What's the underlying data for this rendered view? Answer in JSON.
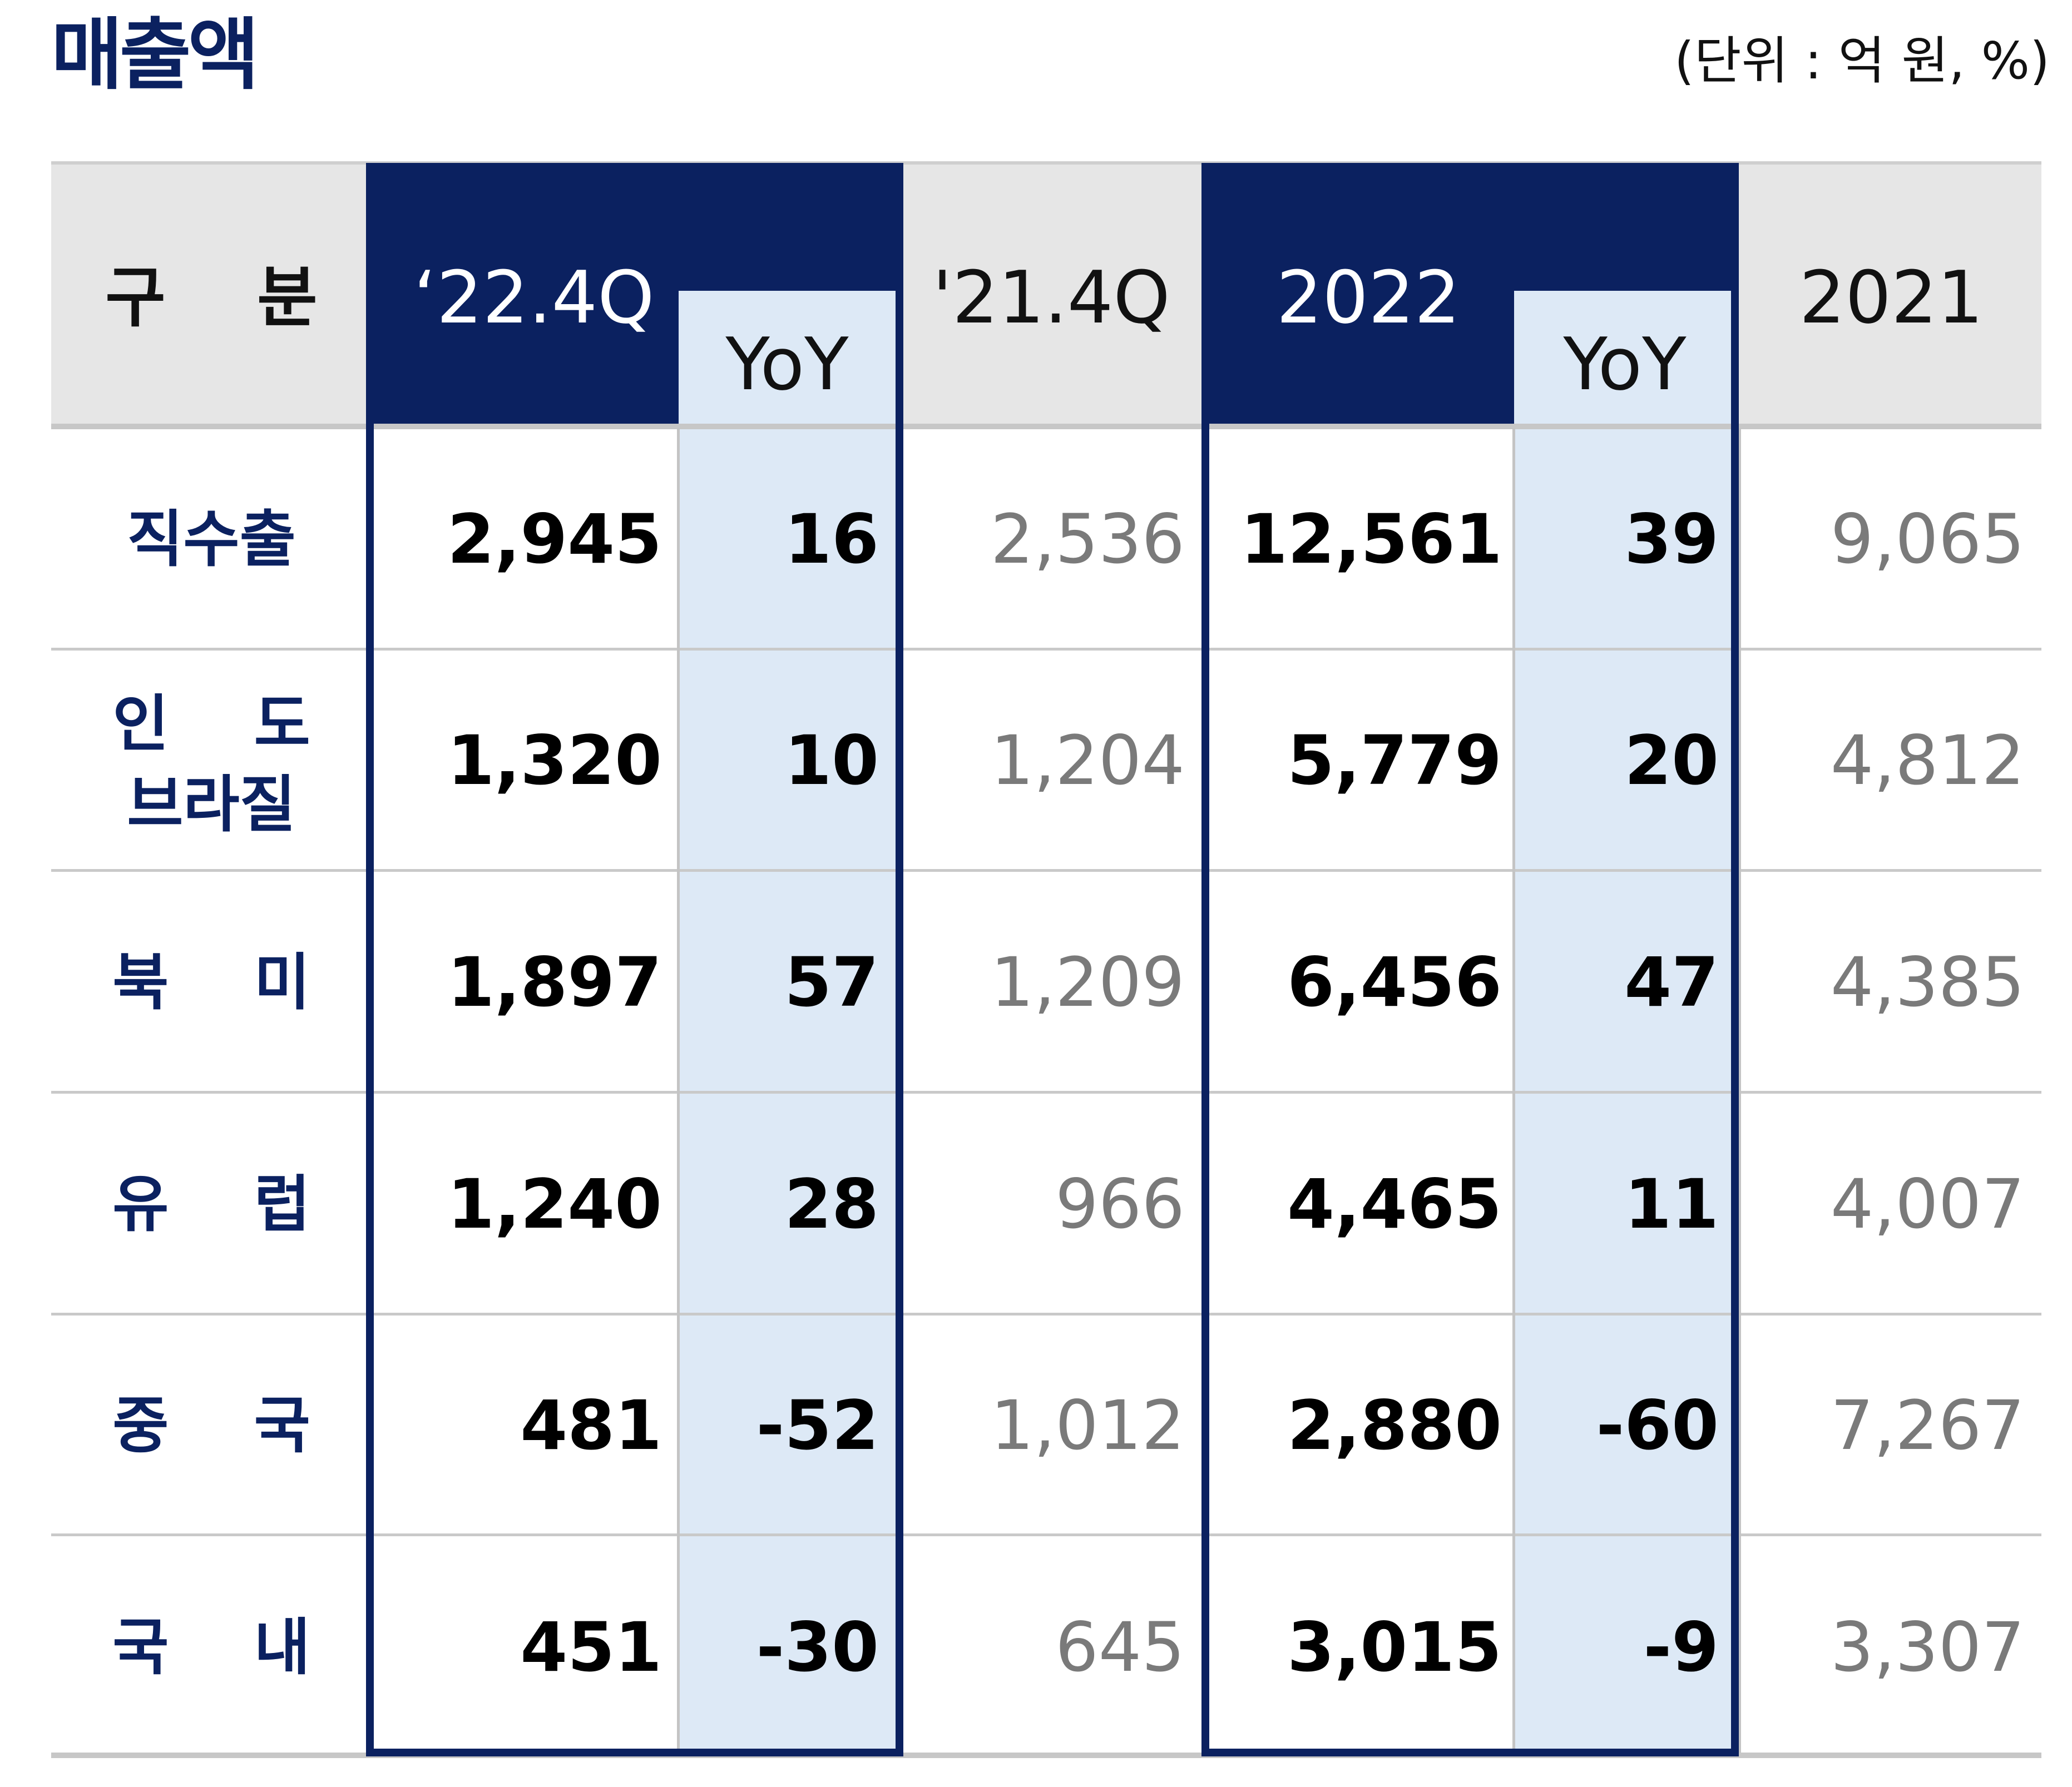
{
  "title": "매출액",
  "unit_note": "(단위 : 억 원, %)",
  "table": {
    "headers": {
      "category": "구    분",
      "q4_2022": "‘22.4Q",
      "yoy_q": "YoY",
      "q4_2021": "'21.4Q",
      "y2022": "2022",
      "yoy_y": "YoY",
      "y2021": "2021"
    },
    "rows": [
      {
        "label": "직수출",
        "q4_2022": "2,945",
        "yoy_q": "16",
        "q4_2021": "2,536",
        "y2022": "12,561",
        "yoy_y": "39",
        "y2021": "9,065"
      },
      {
        "label": "인    도\n브라질",
        "q4_2022": "1,320",
        "yoy_q": "10",
        "q4_2021": "1,204",
        "y2022": "5,779",
        "yoy_y": "20",
        "y2021": "4,812"
      },
      {
        "label": "북    미",
        "q4_2022": "1,897",
        "yoy_q": "57",
        "q4_2021": "1,209",
        "y2022": "6,456",
        "yoy_y": "47",
        "y2021": "4,385"
      },
      {
        "label": "유    럽",
        "q4_2022": "1,240",
        "yoy_q": "28",
        "q4_2021": "966",
        "y2022": "4,465",
        "yoy_y": "11",
        "y2021": "4,007"
      },
      {
        "label": "중    국",
        "q4_2022": "481",
        "yoy_q": "-52",
        "q4_2021": "1,012",
        "y2022": "2,880",
        "yoy_y": "-60",
        "y2021": "7,267"
      },
      {
        "label": "국    내",
        "q4_2022": "451",
        "yoy_q": "-30",
        "q4_2021": "645",
        "y2022": "3,015",
        "yoy_y": "-9",
        "y2021": "3,307"
      }
    ]
  },
  "colors": {
    "navy": "#0b2160",
    "yoy_fill": "#dde9f6",
    "header_fill": "#e6e6e6",
    "previous_period_text": "#7a7a7a"
  }
}
